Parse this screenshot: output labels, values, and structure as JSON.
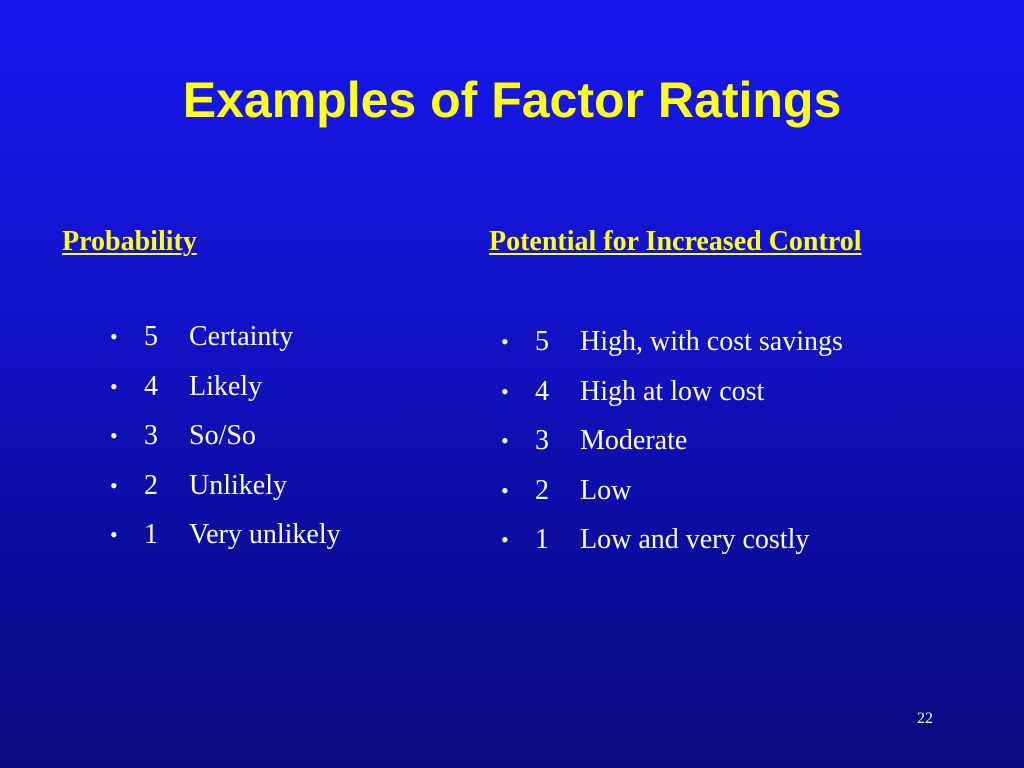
{
  "slide": {
    "title": "Examples of Factor Ratings",
    "page_number": "22"
  },
  "left_column": {
    "heading": "Probability",
    "items": [
      {
        "bullet": "•",
        "rating": "5",
        "label": "Certainty"
      },
      {
        "bullet": "•",
        "rating": "4",
        "label": "Likely"
      },
      {
        "bullet": "•",
        "rating": "3",
        "label": "So/So"
      },
      {
        "bullet": "•",
        "rating": "2",
        "label": "Unlikely"
      },
      {
        "bullet": "•",
        "rating": "1",
        "label": "Very unlikely"
      }
    ]
  },
  "right_column": {
    "heading": "Potential for Increased Control",
    "items": [
      {
        "bullet": "•",
        "rating": "5",
        "label": "High, with cost savings"
      },
      {
        "bullet": "•",
        "rating": "4",
        "label": "High at low cost"
      },
      {
        "bullet": "•",
        "rating": "3",
        "label": "Moderate"
      },
      {
        "bullet": "•",
        "rating": "2",
        "label": "Low"
      },
      {
        "bullet": "•",
        "rating": "1",
        "label": "Low and very costly"
      }
    ]
  },
  "colors": {
    "background_top": "#1818ee",
    "background_bottom": "#09097e",
    "title_text": "#ffff1a",
    "heading_text": "#ffff1a",
    "body_text": "#ffffff"
  }
}
